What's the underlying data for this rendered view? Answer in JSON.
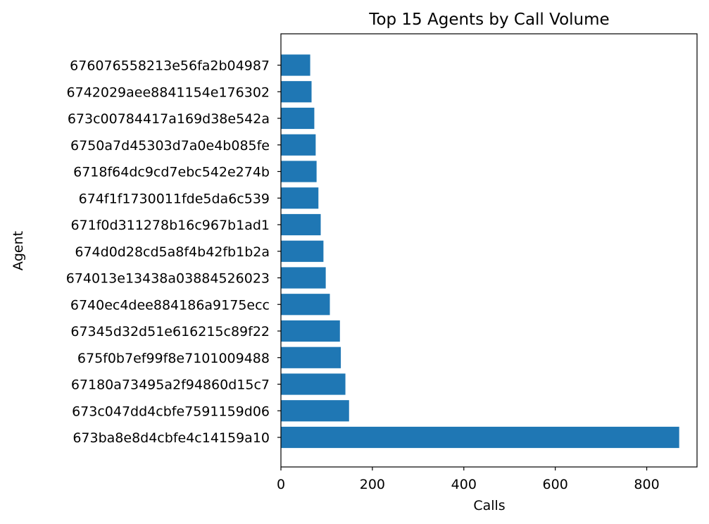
{
  "chart_data": {
    "type": "bar",
    "orientation": "horizontal",
    "title": "Top 15 Agents by Call Volume",
    "xlabel": "Calls",
    "ylabel": "Agent",
    "xlim": [
      0,
      910
    ],
    "xticks": [
      0,
      200,
      400,
      600,
      800
    ],
    "grid": false,
    "color": "#1f77b4",
    "categories": [
      "673ba8e8d4cbfe4c14159a10",
      "673c047dd4cbfe7591159d06",
      "67180a73495a2f94860d15c7",
      "675f0b7ef99f8e7101009488",
      "67345d32d51e616215c89f22",
      "6740ec4dee884186a9175ecc",
      "674013e13438a03884526023",
      "674d0d28cd5a8f4b42fb1b2a",
      "671f0d311278b16c967b1ad1",
      "674f1f1730011fde5da6c539",
      "6718f64dc9cd7ebc542e274b",
      "6750a7d45303d7a0e4b085fe",
      "673c00784417a169d38e542a",
      "6742029aee8841154e176302",
      "676076558213e56fa2b04987"
    ],
    "values": [
      871,
      149,
      141,
      131,
      129,
      107,
      98,
      93,
      87,
      82,
      78,
      76,
      73,
      67,
      64
    ]
  }
}
